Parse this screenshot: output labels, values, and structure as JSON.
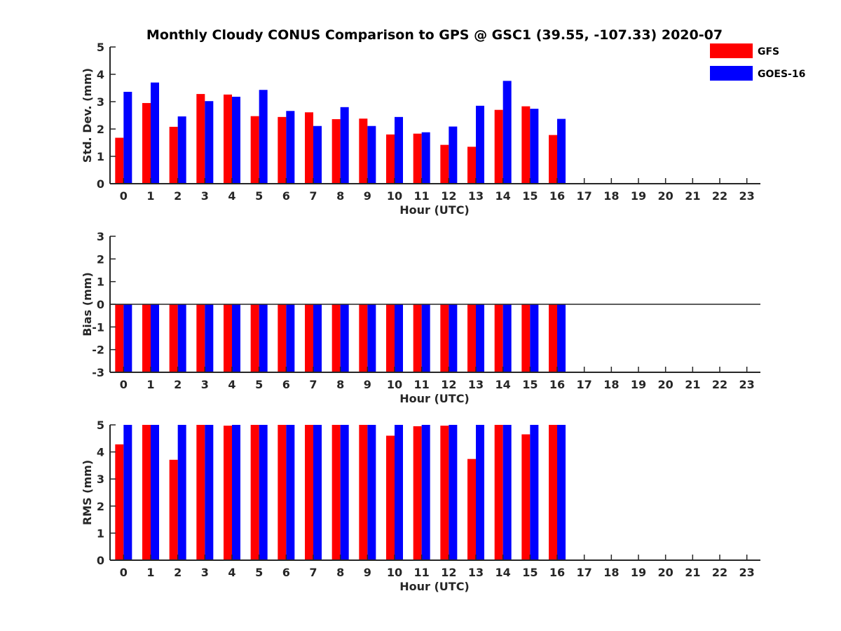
{
  "title": "Monthly Cloudy CONUS Comparison to GPS @ GSC1 (39.55, -107.33) 2020-07",
  "legend": {
    "placement": "top-right",
    "entries": [
      {
        "label": "GFS",
        "color": "#ff0000"
      },
      {
        "label": "GOES-16",
        "color": "#0000ff"
      }
    ]
  },
  "chart_data": [
    {
      "type": "bar",
      "ylabel": "Std. Dev. (mm)",
      "xlabel": "Hour (UTC)",
      "ylim": [
        0,
        5
      ],
      "yticks": [
        0,
        1,
        2,
        3,
        4,
        5
      ],
      "categories": [
        "0",
        "1",
        "2",
        "3",
        "4",
        "5",
        "6",
        "7",
        "8",
        "9",
        "10",
        "11",
        "12",
        "13",
        "14",
        "15",
        "16",
        "17",
        "18",
        "19",
        "20",
        "21",
        "22",
        "23"
      ],
      "series": [
        {
          "name": "GFS",
          "color": "#ff0000",
          "values": [
            1.68,
            2.95,
            2.08,
            3.28,
            3.26,
            2.47,
            2.44,
            2.61,
            2.36,
            2.38,
            1.8,
            1.83,
            1.42,
            1.35,
            2.7,
            2.83,
            1.78,
            null,
            null,
            null,
            null,
            null,
            null,
            null
          ]
        },
        {
          "name": "GOES-16",
          "color": "#0000ff",
          "values": [
            3.36,
            3.7,
            2.46,
            3.02,
            3.18,
            3.43,
            2.66,
            2.11,
            2.8,
            2.11,
            2.44,
            1.88,
            2.09,
            2.85,
            3.76,
            2.74,
            2.37,
            null,
            null,
            null,
            null,
            null,
            null,
            null
          ]
        }
      ],
      "grid": false
    },
    {
      "type": "bar",
      "ylabel": "Bias (mm)",
      "xlabel": "Hour (UTC)",
      "ylim": [
        -3,
        3
      ],
      "yticks": [
        -3,
        -2,
        -1,
        0,
        1,
        2,
        3
      ],
      "categories": [
        "0",
        "1",
        "2",
        "3",
        "4",
        "5",
        "6",
        "7",
        "8",
        "9",
        "10",
        "11",
        "12",
        "13",
        "14",
        "15",
        "16",
        "17",
        "18",
        "19",
        "20",
        "21",
        "22",
        "23"
      ],
      "series": [
        {
          "name": "GFS",
          "color": "#ff0000",
          "values": [
            -3,
            -3,
            -3,
            -3,
            -3,
            -3,
            -3,
            -3,
            -3,
            -3,
            -3,
            -3,
            -3,
            -3,
            -3,
            -3,
            -3,
            null,
            null,
            null,
            null,
            null,
            null,
            null
          ]
        },
        {
          "name": "GOES-16",
          "color": "#0000ff",
          "values": [
            -3,
            -3,
            -3,
            -3,
            -3,
            -3,
            -3,
            -3,
            -3,
            -3,
            -3,
            -3,
            -3,
            -3,
            -3,
            -3,
            -3,
            null,
            null,
            null,
            null,
            null,
            null,
            null
          ]
        }
      ],
      "grid": false
    },
    {
      "type": "bar",
      "ylabel": "RMS (mm)",
      "xlabel": "Hour (UTC)",
      "ylim": [
        0,
        5
      ],
      "yticks": [
        0,
        1,
        2,
        3,
        4,
        5
      ],
      "categories": [
        "0",
        "1",
        "2",
        "3",
        "4",
        "5",
        "6",
        "7",
        "8",
        "9",
        "10",
        "11",
        "12",
        "13",
        "14",
        "15",
        "16",
        "17",
        "18",
        "19",
        "20",
        "21",
        "22",
        "23"
      ],
      "series": [
        {
          "name": "GFS",
          "color": "#ff0000",
          "values": [
            4.28,
            5.0,
            3.71,
            5.0,
            4.97,
            5.0,
            5.0,
            5.0,
            5.0,
            5.0,
            4.6,
            4.95,
            4.97,
            3.74,
            5.0,
            4.65,
            5.0,
            null,
            null,
            null,
            null,
            null,
            null,
            null
          ]
        },
        {
          "name": "GOES-16",
          "color": "#0000ff",
          "values": [
            5.0,
            5.0,
            5.0,
            5.0,
            5.0,
            5.0,
            5.0,
            5.0,
            5.0,
            5.0,
            5.0,
            5.0,
            5.0,
            5.0,
            5.0,
            5.0,
            5.0,
            null,
            null,
            null,
            null,
            null,
            null,
            null
          ]
        }
      ],
      "grid": false
    }
  ]
}
